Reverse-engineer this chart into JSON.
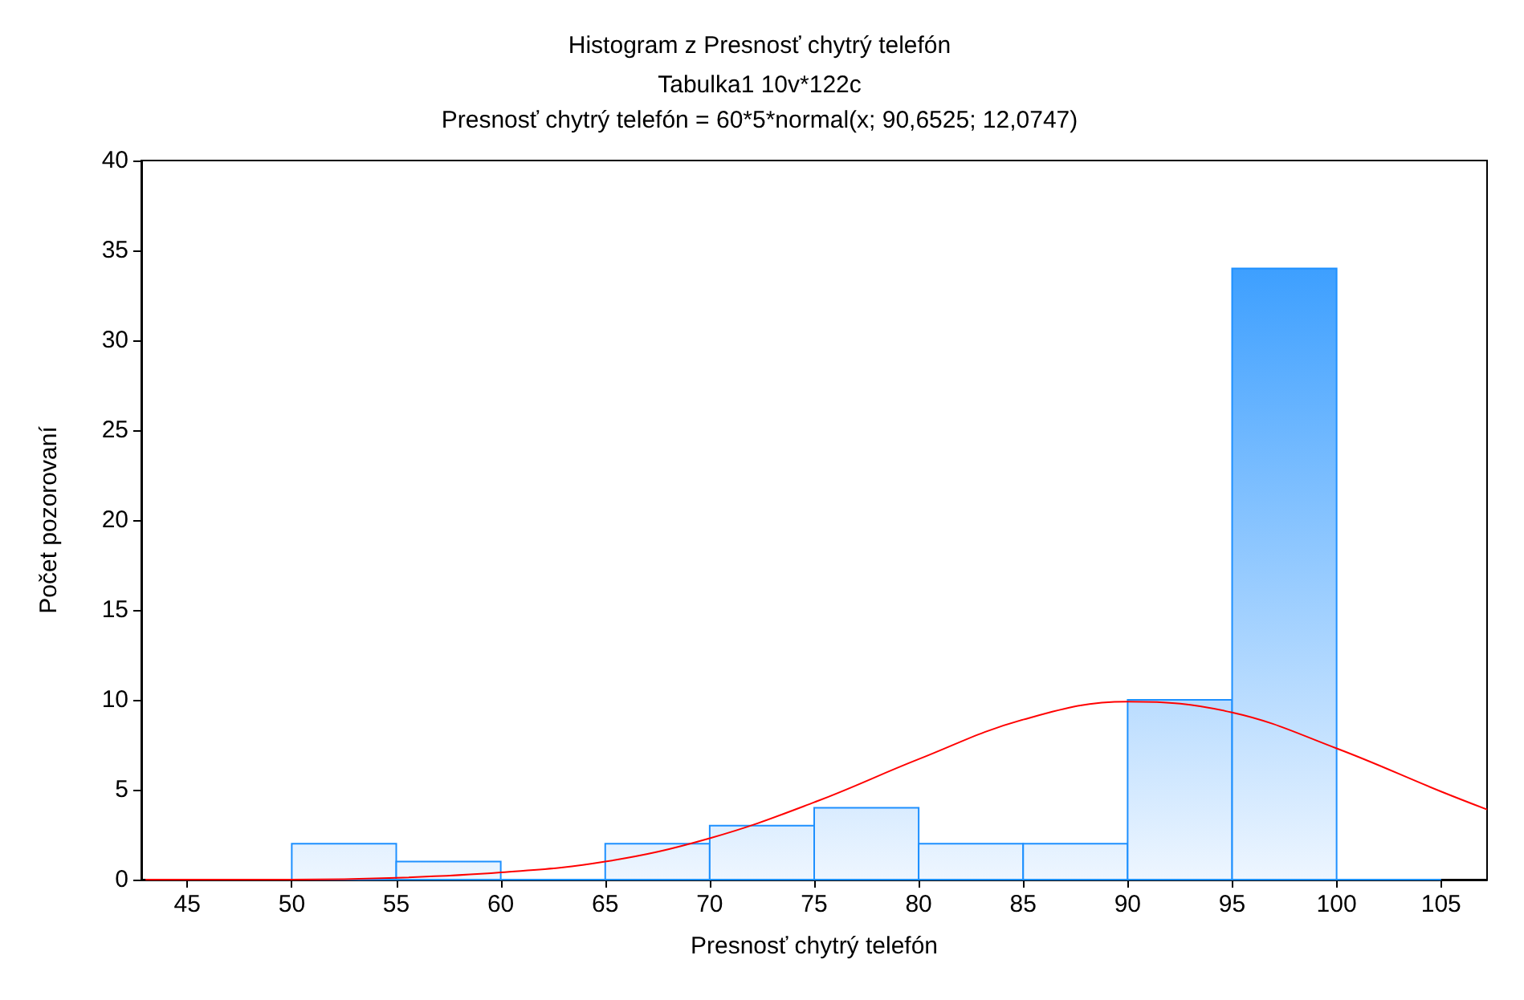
{
  "chart_data": {
    "type": "histogram",
    "title": "Histogram z Presnosť chytrý telefón",
    "subtitle": "Tabulka1 10v*122c\nPresnosť chytrý telefón = 60*5*normal(x; 90,6525; 12,0747)",
    "xlabel": "Presnosť chytrý telefón",
    "ylabel": "Počet pozorovaní",
    "bins": [
      45,
      50,
      55,
      60,
      65,
      70,
      75,
      80,
      85,
      90,
      95,
      100,
      105
    ],
    "values": [
      0,
      2,
      1,
      0,
      2,
      3,
      4,
      2,
      2,
      10,
      34,
      0
    ],
    "color": "#1e90ff",
    "series": [
      {
        "type": "line",
        "color": "#ff0000",
        "marker": "none",
        "x": [
          43,
          50,
          55,
          60,
          65,
          70,
          75,
          80,
          85,
          90,
          95,
          100,
          105,
          107.2
        ],
        "values": [
          0,
          0,
          0.1,
          0.4,
          1,
          2.3,
          4.3,
          6.7,
          8.9,
          9.9,
          9.3,
          7.3,
          4.9,
          3.9
        ]
      }
    ],
    "xlim": [
      42.8,
      107.2
    ],
    "xticks": [
      45,
      50,
      55,
      60,
      65,
      70,
      75,
      80,
      85,
      90,
      95,
      100,
      105
    ],
    "ylim": [
      0,
      40
    ],
    "yticks": [
      0,
      5,
      10,
      15,
      20,
      25,
      30,
      35,
      40
    ],
    "grid": false
  }
}
